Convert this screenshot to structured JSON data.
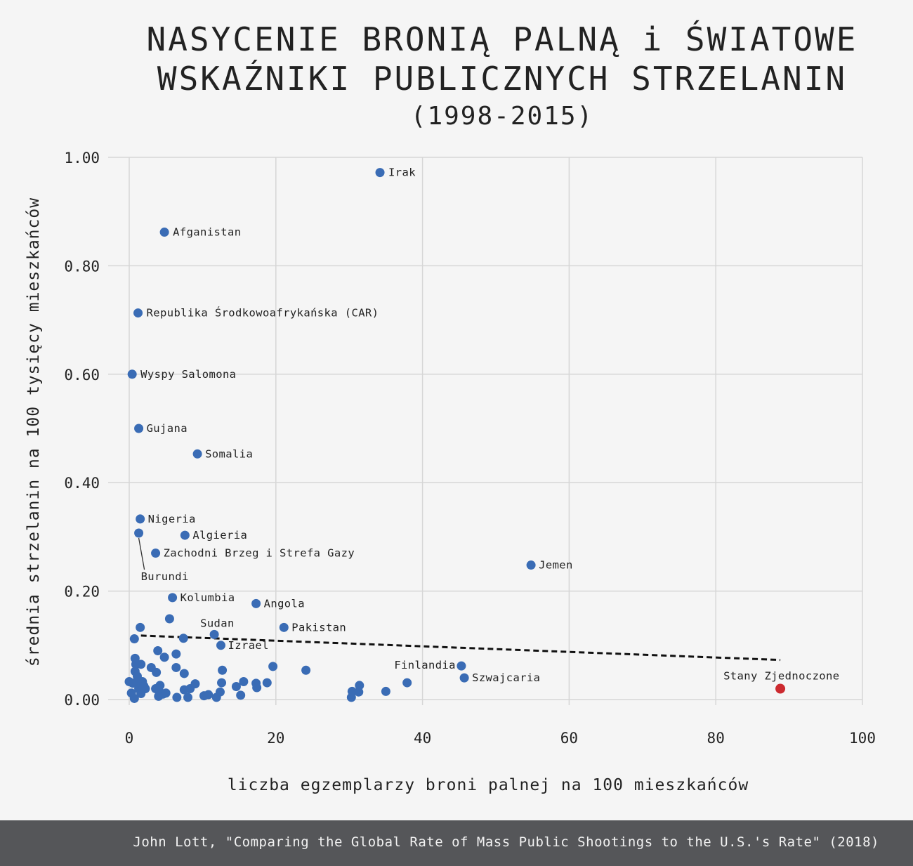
{
  "title": {
    "line1": "NASYCENIE BRONIĄ PALNĄ i ŚWIATOWE",
    "line2": "WSKAŹNIKI PUBLICZNYCH STRZELANIN",
    "subtitle": "(1998-2015)"
  },
  "footer": {
    "source": "John Lott, \"Comparing the Global Rate of Mass Public Shootings to the U.S.'s Rate\" (2018)"
  },
  "colors": {
    "point": "#3a6cb5",
    "highlight": "#cc2a2f",
    "grid": "#d6d6d6",
    "trend": "#111111",
    "footer_bg": "#555659"
  },
  "chart_data": {
    "type": "scatter",
    "xlabel": "liczba egzemplarzy broni palnej na 100 mieszkańców",
    "ylabel": "średnia strzelanin na 100 tysięcy mieszkańców",
    "xlim": [
      0,
      100
    ],
    "ylim": [
      0,
      1.0
    ],
    "xticks": [
      "0",
      "20",
      "40",
      "60",
      "80",
      "100"
    ],
    "yticks": [
      "0.00",
      "0.20",
      "0.40",
      "0.60",
      "0.80",
      "1.00"
    ],
    "grid": true,
    "trendline": {
      "x": [
        1.6,
        88.8
      ],
      "y": [
        0.118,
        0.073
      ],
      "style": "dashed"
    },
    "labeled_points": [
      {
        "label": "Irak",
        "x": 34.2,
        "y": 0.972
      },
      {
        "label": "Afganistan",
        "x": 4.8,
        "y": 0.862
      },
      {
        "label": "Republika Środkowoafrykańska (CAR)",
        "x": 1.2,
        "y": 0.713
      },
      {
        "label": "Wyspy Salomona",
        "x": 0.4,
        "y": 0.6
      },
      {
        "label": "Gujana",
        "x": 1.3,
        "y": 0.5
      },
      {
        "label": "Somalia",
        "x": 9.3,
        "y": 0.453
      },
      {
        "label": "Nigeria",
        "x": 1.5,
        "y": 0.333
      },
      {
        "label": "Burundi",
        "x": 1.3,
        "y": 0.307
      },
      {
        "label": "Algieria",
        "x": 7.6,
        "y": 0.303
      },
      {
        "label": "Zachodni Brzeg i Strefa Gazy",
        "x": 3.6,
        "y": 0.27
      },
      {
        "label": "Jemen",
        "x": 54.8,
        "y": 0.248
      },
      {
        "label": "Kolumbia",
        "x": 5.9,
        "y": 0.188
      },
      {
        "label": "Angola",
        "x": 17.3,
        "y": 0.177
      },
      {
        "label": "Pakistan",
        "x": 21.1,
        "y": 0.133
      },
      {
        "label": "Sudan",
        "x": 11.6,
        "y": 0.12
      },
      {
        "label": "Izrael",
        "x": 12.5,
        "y": 0.1
      },
      {
        "label": "Finlandia",
        "x": 45.3,
        "y": 0.062
      },
      {
        "label": "Szwajcaria",
        "x": 45.7,
        "y": 0.04
      },
      {
        "label": "Stany Zjednoczone",
        "x": 88.8,
        "y": 0.02,
        "highlight": true
      }
    ],
    "other_points": [
      [
        1.5,
        0.133
      ],
      [
        0.7,
        0.112
      ],
      [
        5.5,
        0.149
      ],
      [
        7.4,
        0.113
      ],
      [
        0.8,
        0.076
      ],
      [
        1.6,
        0.065
      ],
      [
        0.9,
        0.065
      ],
      [
        3.0,
        0.059
      ],
      [
        3.9,
        0.09
      ],
      [
        4.8,
        0.078
      ],
      [
        6.4,
        0.084
      ],
      [
        6.4,
        0.059
      ],
      [
        3.7,
        0.05
      ],
      [
        7.5,
        0.048
      ],
      [
        0.8,
        0.052
      ],
      [
        1.1,
        0.043
      ],
      [
        0.0,
        0.033
      ],
      [
        1.0,
        0.033
      ],
      [
        1.8,
        0.033
      ],
      [
        2.2,
        0.02
      ],
      [
        0.3,
        0.012
      ],
      [
        1.3,
        0.02
      ],
      [
        1.6,
        0.011
      ],
      [
        0.7,
        0.002
      ],
      [
        3.6,
        0.02
      ],
      [
        4.2,
        0.026
      ],
      [
        4.1,
        0.015
      ],
      [
        4.6,
        0.01
      ],
      [
        4.0,
        0.006
      ],
      [
        5.0,
        0.012
      ],
      [
        6.5,
        0.004
      ],
      [
        7.5,
        0.018
      ],
      [
        8.0,
        0.004
      ],
      [
        8.3,
        0.02
      ],
      [
        9.0,
        0.029
      ],
      [
        10.2,
        0.007
      ],
      [
        10.8,
        0.009
      ],
      [
        11.9,
        0.004
      ],
      [
        12.4,
        0.014
      ],
      [
        12.6,
        0.031
      ],
      [
        12.7,
        0.054
      ],
      [
        14.6,
        0.024
      ],
      [
        15.2,
        0.008
      ],
      [
        15.6,
        0.033
      ],
      [
        17.3,
        0.03
      ],
      [
        17.4,
        0.022
      ],
      [
        18.8,
        0.031
      ],
      [
        19.6,
        0.061
      ],
      [
        24.1,
        0.054
      ],
      [
        30.3,
        0.004
      ],
      [
        30.4,
        0.015
      ],
      [
        31.3,
        0.014
      ],
      [
        31.4,
        0.026
      ],
      [
        35.0,
        0.015
      ],
      [
        37.9,
        0.031
      ],
      [
        0.5,
        0.03
      ],
      [
        2.0,
        0.025
      ]
    ]
  }
}
